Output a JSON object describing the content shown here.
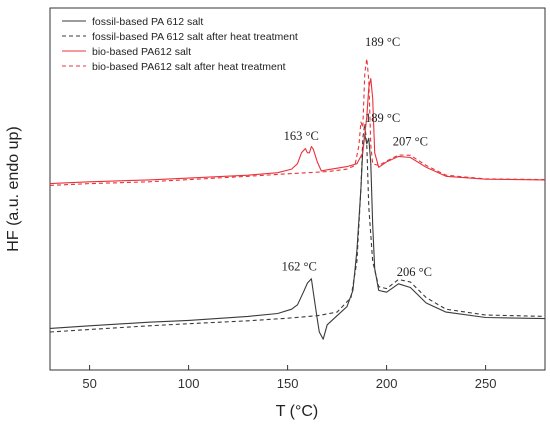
{
  "chart_data": {
    "type": "line",
    "xlabel": "T (°C)",
    "ylabel": "HF (a.u. endo up)",
    "xlim": [
      30,
      280
    ],
    "xticks": [
      50,
      100,
      150,
      200,
      250
    ],
    "xtick_labels": [
      "50",
      "100",
      "150",
      "200",
      "250"
    ],
    "yticks_shown": false,
    "grid": false,
    "legend_position": "top-left",
    "colors": {
      "fossil": "#3a3a3a",
      "bio": "#e8333a"
    },
    "series": [
      {
        "name": "fossil-based PA 612  salt",
        "style": "solid",
        "color_key": "fossil",
        "points": [
          [
            30,
            0.115
          ],
          [
            50,
            0.122
          ],
          [
            80,
            0.132
          ],
          [
            100,
            0.137
          ],
          [
            130,
            0.148
          ],
          [
            145,
            0.156
          ],
          [
            152,
            0.168
          ],
          [
            155,
            0.18
          ],
          [
            158,
            0.215
          ],
          [
            160,
            0.24
          ],
          [
            162,
            0.252
          ],
          [
            163,
            0.215
          ],
          [
            165,
            0.14
          ],
          [
            166,
            0.105
          ],
          [
            168,
            0.085
          ],
          [
            170,
            0.125
          ],
          [
            175,
            0.15
          ],
          [
            180,
            0.175
          ],
          [
            183,
            0.22
          ],
          [
            185,
            0.33
          ],
          [
            187,
            0.5
          ],
          [
            188,
            0.61
          ],
          [
            189,
            0.65
          ],
          [
            190,
            0.625
          ],
          [
            191,
            0.64
          ],
          [
            192,
            0.57
          ],
          [
            193,
            0.4
          ],
          [
            194,
            0.28
          ],
          [
            196,
            0.22
          ],
          [
            200,
            0.215
          ],
          [
            206,
            0.238
          ],
          [
            212,
            0.228
          ],
          [
            220,
            0.185
          ],
          [
            230,
            0.16
          ],
          [
            250,
            0.145
          ],
          [
            280,
            0.142
          ]
        ]
      },
      {
        "name": "fossil-based PA 612 salt after heat treatment",
        "style": "dashed",
        "color_key": "fossil",
        "points": [
          [
            30,
            0.105
          ],
          [
            50,
            0.112
          ],
          [
            80,
            0.122
          ],
          [
            100,
            0.128
          ],
          [
            130,
            0.136
          ],
          [
            150,
            0.143
          ],
          [
            165,
            0.15
          ],
          [
            175,
            0.16
          ],
          [
            182,
            0.2
          ],
          [
            185,
            0.3
          ],
          [
            187,
            0.5
          ],
          [
            188,
            0.64
          ],
          [
            189,
            0.68
          ],
          [
            190,
            0.62
          ],
          [
            191,
            0.45
          ],
          [
            193,
            0.3
          ],
          [
            196,
            0.23
          ],
          [
            200,
            0.225
          ],
          [
            206,
            0.25
          ],
          [
            212,
            0.243
          ],
          [
            220,
            0.2
          ],
          [
            230,
            0.168
          ],
          [
            250,
            0.152
          ],
          [
            280,
            0.148
          ]
        ]
      },
      {
        "name": "bio-based PA612 salt",
        "style": "solid",
        "color_key": "bio",
        "points": [
          [
            30,
            0.515
          ],
          [
            50,
            0.52
          ],
          [
            80,
            0.525
          ],
          [
            100,
            0.53
          ],
          [
            130,
            0.538
          ],
          [
            145,
            0.545
          ],
          [
            152,
            0.555
          ],
          [
            155,
            0.57
          ],
          [
            157,
            0.6
          ],
          [
            159,
            0.612
          ],
          [
            160,
            0.6
          ],
          [
            161,
            0.6
          ],
          [
            162,
            0.617
          ],
          [
            163,
            0.61
          ],
          [
            165,
            0.575
          ],
          [
            167,
            0.55
          ],
          [
            170,
            0.553
          ],
          [
            180,
            0.562
          ],
          [
            185,
            0.57
          ],
          [
            188,
            0.6
          ],
          [
            190,
            0.7
          ],
          [
            191,
            0.78
          ],
          [
            192,
            0.805
          ],
          [
            193,
            0.75
          ],
          [
            194,
            0.6
          ],
          [
            196,
            0.56
          ],
          [
            200,
            0.575
          ],
          [
            206,
            0.59
          ],
          [
            212,
            0.587
          ],
          [
            220,
            0.56
          ],
          [
            230,
            0.535
          ],
          [
            250,
            0.527
          ],
          [
            280,
            0.525
          ]
        ]
      },
      {
        "name": "bio-based PA612 salt after heat treatment",
        "style": "dashed",
        "color_key": "bio",
        "points": [
          [
            30,
            0.51
          ],
          [
            50,
            0.515
          ],
          [
            80,
            0.52
          ],
          [
            100,
            0.526
          ],
          [
            130,
            0.535
          ],
          [
            150,
            0.542
          ],
          [
            170,
            0.548
          ],
          [
            180,
            0.555
          ],
          [
            184,
            0.565
          ],
          [
            186,
            0.62
          ],
          [
            187,
            0.685
          ],
          [
            188,
            0.67
          ],
          [
            189,
            0.82
          ],
          [
            190,
            0.86
          ],
          [
            191,
            0.8
          ],
          [
            192,
            0.62
          ],
          [
            193,
            0.57
          ],
          [
            196,
            0.565
          ],
          [
            200,
            0.577
          ],
          [
            206,
            0.594
          ],
          [
            212,
            0.593
          ],
          [
            220,
            0.565
          ],
          [
            230,
            0.538
          ],
          [
            250,
            0.528
          ],
          [
            280,
            0.526
          ]
        ]
      }
    ],
    "annotations": [
      {
        "text": "163 °C",
        "x": 148,
        "y": 0.635,
        "anchor": "start"
      },
      {
        "text": "189 °C",
        "x": 198,
        "y": 0.895,
        "anchor": "middle"
      },
      {
        "text": "207 °C",
        "x": 212,
        "y": 0.62,
        "anchor": "middle"
      },
      {
        "text": "162 °C",
        "x": 147,
        "y": 0.275,
        "anchor": "start"
      },
      {
        "text": "189 °C",
        "x": 198,
        "y": 0.685,
        "anchor": "middle"
      },
      {
        "text": "206 °C",
        "x": 214,
        "y": 0.26,
        "anchor": "middle"
      }
    ]
  }
}
